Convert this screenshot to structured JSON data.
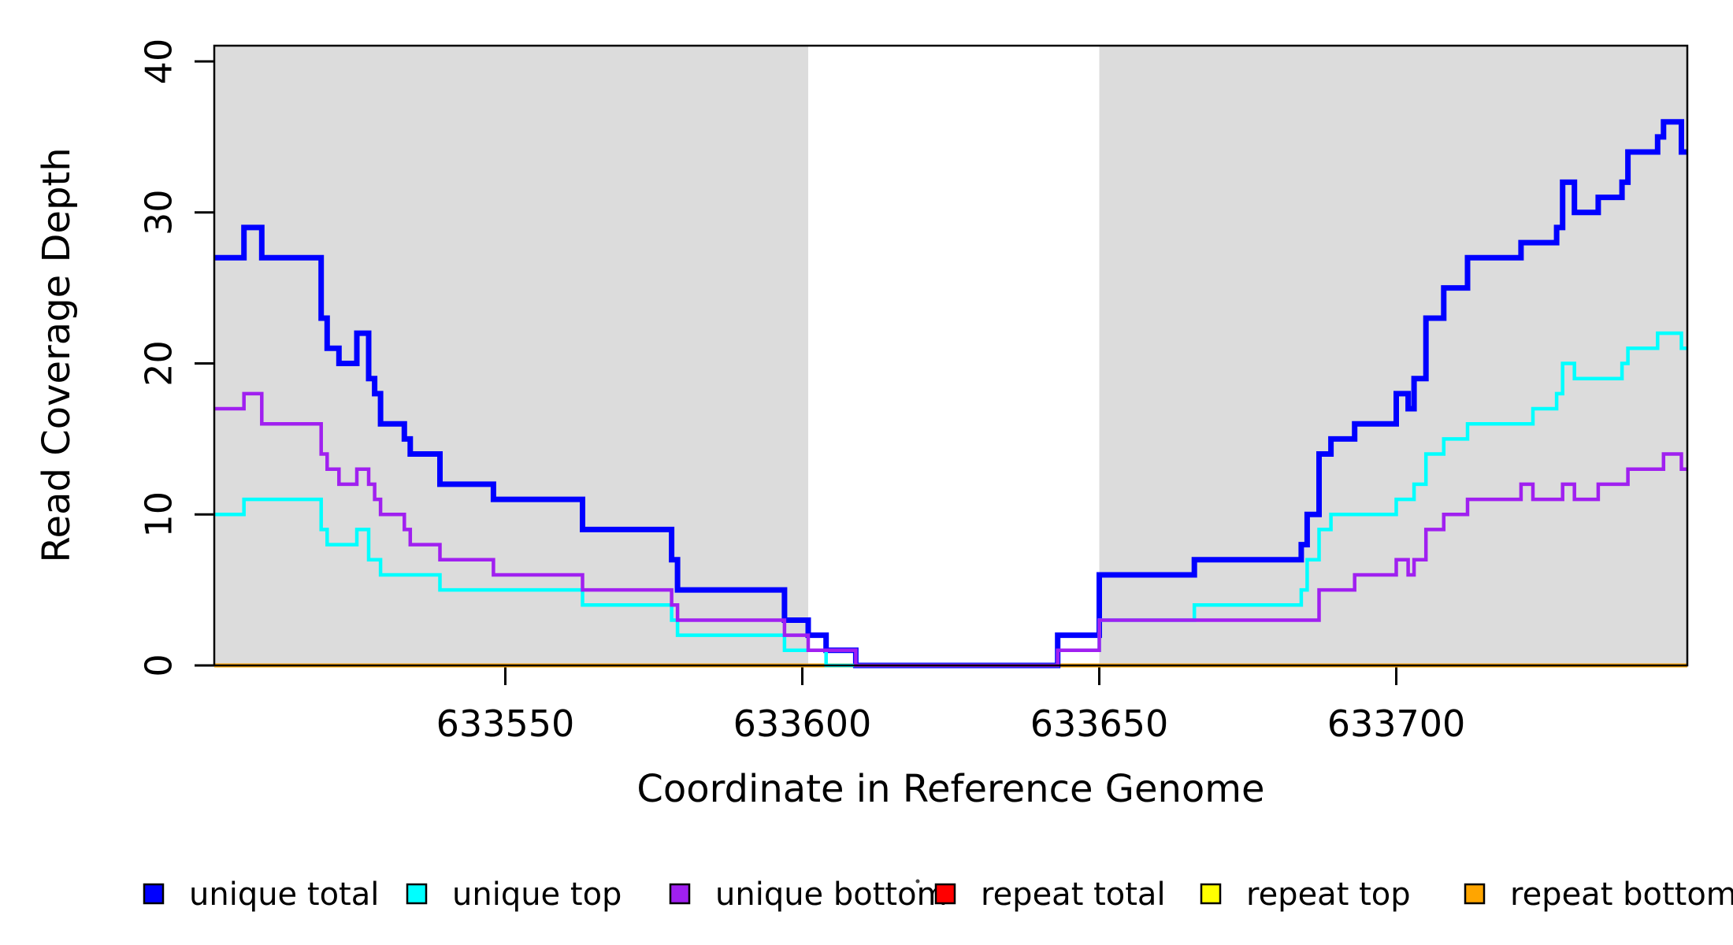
{
  "chart_data": {
    "type": "line",
    "subtype": "step-after-coverage-plot",
    "title": "",
    "xlabel": "Coordinate in Reference Genome",
    "ylabel": "Read Coverage Depth",
    "xlim": [
      633501,
      633749
    ],
    "ylim": [
      0,
      41
    ],
    "x_ticks": [
      633550,
      633600,
      633650,
      633700
    ],
    "y_ticks": [
      0,
      10,
      20,
      30,
      40
    ],
    "grid": "off",
    "legend_position": "bottom",
    "shade_color": "#DCDCDC",
    "background_color": "#FFFFFF",
    "frame_color": "#000000",
    "shaded_regions": [
      {
        "x0": 633501,
        "x1": 633601
      },
      {
        "x0": 633650,
        "x1": 633749
      }
    ],
    "series": [
      {
        "name": "unique total",
        "color": "#0000FF",
        "width": 7,
        "points": [
          [
            633501,
            27
          ],
          [
            633506,
            29
          ],
          [
            633509,
            27
          ],
          [
            633519,
            23
          ],
          [
            633520,
            21
          ],
          [
            633522,
            20
          ],
          [
            633525,
            22
          ],
          [
            633527,
            19
          ],
          [
            633528,
            18
          ],
          [
            633529,
            16
          ],
          [
            633533,
            15
          ],
          [
            633534,
            14
          ],
          [
            633539,
            12
          ],
          [
            633548,
            11
          ],
          [
            633563,
            9
          ],
          [
            633578,
            7
          ],
          [
            633579,
            5
          ],
          [
            633597,
            3
          ],
          [
            633601,
            2
          ],
          [
            633604,
            1
          ],
          [
            633609,
            0
          ],
          [
            633643,
            2
          ],
          [
            633650,
            6
          ],
          [
            633666,
            7
          ],
          [
            633684,
            8
          ],
          [
            633685,
            10
          ],
          [
            633687,
            14
          ],
          [
            633689,
            15
          ],
          [
            633693,
            16
          ],
          [
            633700,
            18
          ],
          [
            633702,
            17
          ],
          [
            633703,
            19
          ],
          [
            633705,
            23
          ],
          [
            633708,
            25
          ],
          [
            633712,
            27
          ],
          [
            633721,
            28
          ],
          [
            633727,
            29
          ],
          [
            633728,
            32
          ],
          [
            633730,
            30
          ],
          [
            633734,
            31
          ],
          [
            633738,
            32
          ],
          [
            633739,
            34
          ],
          [
            633744,
            35
          ],
          [
            633745,
            36
          ],
          [
            633748,
            34
          ],
          [
            633749,
            34
          ]
        ]
      },
      {
        "name": "unique top",
        "color": "#00FFFF",
        "width": 4.5,
        "points": [
          [
            633501,
            10
          ],
          [
            633506,
            11
          ],
          [
            633519,
            9
          ],
          [
            633520,
            8
          ],
          [
            633525,
            9
          ],
          [
            633527,
            7
          ],
          [
            633529,
            6
          ],
          [
            633539,
            5
          ],
          [
            633563,
            4
          ],
          [
            633578,
            3
          ],
          [
            633579,
            2
          ],
          [
            633597,
            1
          ],
          [
            633604,
            0
          ],
          [
            633643,
            1
          ],
          [
            633650,
            3
          ],
          [
            633666,
            4
          ],
          [
            633684,
            5
          ],
          [
            633685,
            7
          ],
          [
            633687,
            9
          ],
          [
            633689,
            10
          ],
          [
            633700,
            11
          ],
          [
            633703,
            12
          ],
          [
            633705,
            14
          ],
          [
            633708,
            15
          ],
          [
            633712,
            16
          ],
          [
            633723,
            17
          ],
          [
            633727,
            18
          ],
          [
            633728,
            20
          ],
          [
            633730,
            19
          ],
          [
            633738,
            20
          ],
          [
            633739,
            21
          ],
          [
            633744,
            22
          ],
          [
            633748,
            21
          ],
          [
            633749,
            21
          ]
        ]
      },
      {
        "name": "unique bottom",
        "color": "#A020F0",
        "width": 4.5,
        "points": [
          [
            633501,
            17
          ],
          [
            633506,
            18
          ],
          [
            633509,
            16
          ],
          [
            633519,
            14
          ],
          [
            633520,
            13
          ],
          [
            633522,
            12
          ],
          [
            633525,
            13
          ],
          [
            633527,
            12
          ],
          [
            633528,
            11
          ],
          [
            633529,
            10
          ],
          [
            633533,
            9
          ],
          [
            633534,
            8
          ],
          [
            633539,
            7
          ],
          [
            633548,
            6
          ],
          [
            633563,
            5
          ],
          [
            633578,
            4
          ],
          [
            633579,
            3
          ],
          [
            633597,
            2
          ],
          [
            633601,
            1
          ],
          [
            633609,
            0
          ],
          [
            633643,
            1
          ],
          [
            633650,
            3
          ],
          [
            633687,
            5
          ],
          [
            633693,
            6
          ],
          [
            633700,
            7
          ],
          [
            633702,
            6
          ],
          [
            633703,
            7
          ],
          [
            633705,
            9
          ],
          [
            633708,
            10
          ],
          [
            633712,
            11
          ],
          [
            633721,
            12
          ],
          [
            633723,
            11
          ],
          [
            633728,
            12
          ],
          [
            633730,
            11
          ],
          [
            633734,
            12
          ],
          [
            633739,
            13
          ],
          [
            633745,
            14
          ],
          [
            633748,
            13
          ],
          [
            633749,
            13
          ]
        ]
      },
      {
        "name": "repeat total",
        "color": "#FF0000",
        "width": 5,
        "points": [
          [
            633501,
            0
          ],
          [
            633749,
            0
          ]
        ]
      },
      {
        "name": "repeat top",
        "color": "#FFFF00",
        "width": 5,
        "points": [
          [
            633501,
            0
          ],
          [
            633749,
            0
          ]
        ]
      },
      {
        "name": "repeat bottom",
        "color": "#FFA500",
        "width": 5,
        "points": [
          [
            633501,
            0
          ],
          [
            633749,
            0
          ]
        ]
      }
    ]
  }
}
